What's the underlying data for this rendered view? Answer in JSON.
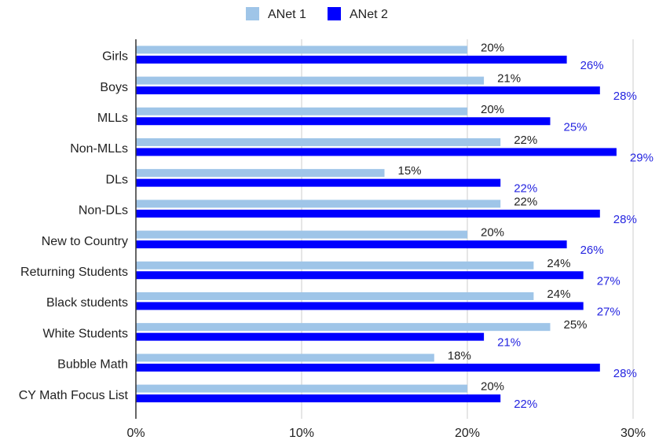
{
  "chart_data": {
    "type": "bar",
    "orientation": "horizontal",
    "categories": [
      "Girls",
      "Boys",
      "MLLs",
      "Non-MLLs",
      "DLs",
      "Non-DLs",
      "New to Country",
      "Returning Students",
      "Black students",
      "White Students",
      "Bubble Math",
      "CY Math Focus List"
    ],
    "series": [
      {
        "name": "ANet 1",
        "color": "#9fc5e8",
        "label_color": "#222222",
        "values": [
          20,
          21,
          20,
          22,
          15,
          22,
          20,
          24,
          24,
          25,
          18,
          20
        ],
        "labels": [
          "20%",
          "21%",
          "20%",
          "22%",
          "15%",
          "22%",
          "20%",
          "24%",
          "24%",
          "25%",
          "18%",
          "20%"
        ]
      },
      {
        "name": "ANet 2",
        "color": "#0000ff",
        "label_color": "#2424e0",
        "values": [
          26,
          28,
          25,
          29,
          22,
          28,
          26,
          27,
          27,
          21,
          28,
          22
        ],
        "labels": [
          "26%",
          "28%",
          "25%",
          "29%",
          "22%",
          "28%",
          "26%",
          "27%",
          "27%",
          "21%",
          "28%",
          "22%"
        ]
      }
    ],
    "xlim": [
      0,
      30
    ],
    "ticks": [
      0,
      10,
      20,
      30
    ],
    "tick_labels": [
      "0%",
      "10%",
      "20%",
      "30%"
    ],
    "grid": true,
    "legend": "top-center"
  }
}
